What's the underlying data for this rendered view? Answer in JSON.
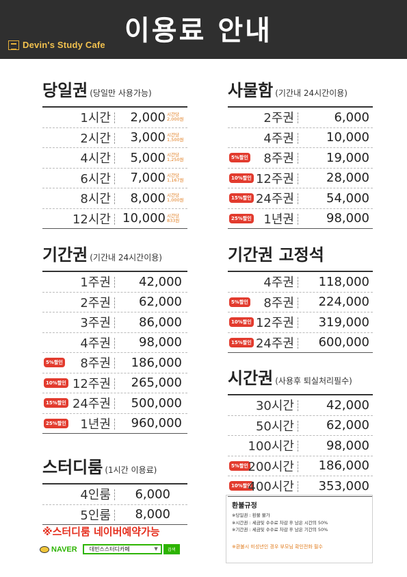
{
  "header": {
    "brand": "Devin's Study Cafe",
    "title": "이용료 안내"
  },
  "daily": {
    "title": "당일권",
    "subtitle": "(당일만 사용가능)",
    "rows": [
      {
        "name": "1시간",
        "price": "2,000",
        "unit_label": "시간당",
        "unit_price": "2,000원"
      },
      {
        "name": "2시간",
        "price": "3,000",
        "unit_label": "시간당",
        "unit_price": "1,500원"
      },
      {
        "name": "4시간",
        "price": "5,000",
        "unit_label": "시간당",
        "unit_price": "1,250원"
      },
      {
        "name": "6시간",
        "price": "7,000",
        "unit_label": "시간당",
        "unit_price": "1,167원"
      },
      {
        "name": "8시간",
        "price": "8,000",
        "unit_label": "시간당",
        "unit_price": "1,000원"
      },
      {
        "name": "12시간",
        "price": "10,000",
        "unit_label": "시간당",
        "unit_price": "833원"
      }
    ]
  },
  "period": {
    "title": "기간권",
    "subtitle": "(기간내 24시간이용)",
    "rows": [
      {
        "badge": "",
        "name": "1주권",
        "price": "42,000"
      },
      {
        "badge": "",
        "name": "2주권",
        "price": "62,000"
      },
      {
        "badge": "",
        "name": "3주권",
        "price": "86,000"
      },
      {
        "badge": "",
        "name": "4주권",
        "price": "98,000"
      },
      {
        "badge": "5%할인",
        "name": "8주권",
        "price": "186,000"
      },
      {
        "badge": "10%할인",
        "name": "12주권",
        "price": "265,000"
      },
      {
        "badge": "15%할인",
        "name": "24주권",
        "price": "500,000"
      },
      {
        "badge": "25%할인",
        "name": "1년권",
        "price": "960,000"
      }
    ]
  },
  "studyroom": {
    "title": "스터디룸",
    "subtitle": "(1시간 이용료)",
    "rows": [
      {
        "name": "4인룸",
        "price": "6,000"
      },
      {
        "name": "5인룸",
        "price": "8,000"
      }
    ]
  },
  "notice": "※스터디룸 네이버예약가능",
  "naver": {
    "logo": "NAVER",
    "search_text": "데빈스스터디카페",
    "search_button": "검색"
  },
  "locker": {
    "title": "사물함",
    "subtitle": "(기간내 24시간이용)",
    "rows": [
      {
        "badge": "",
        "name": "2주권",
        "price": "6,000"
      },
      {
        "badge": "",
        "name": "4주권",
        "price": "10,000"
      },
      {
        "badge": "5%할인",
        "name": "8주권",
        "price": "19,000"
      },
      {
        "badge": "10%할인",
        "name": "12주권",
        "price": "28,000"
      },
      {
        "badge": "15%할인",
        "name": "24주권",
        "price": "54,000"
      },
      {
        "badge": "25%할인",
        "name": "1년권",
        "price": "98,000"
      }
    ]
  },
  "fixed": {
    "title": "기간권 고정석",
    "rows": [
      {
        "badge": "",
        "name": "4주권",
        "price": "118,000"
      },
      {
        "badge": "5%할인",
        "name": "8주권",
        "price": "224,000"
      },
      {
        "badge": "10%할인",
        "name": "12주권",
        "price": "319,000"
      },
      {
        "badge": "15%할인",
        "name": "24주권",
        "price": "600,000"
      }
    ]
  },
  "hourly": {
    "title": "시간권",
    "subtitle": "(사용후 퇴실처리필수)",
    "rows": [
      {
        "badge": "",
        "name": "30시간",
        "price": "42,000"
      },
      {
        "badge": "",
        "name": "50시간",
        "price": "62,000"
      },
      {
        "badge": "",
        "name": "100시간",
        "price": "98,000"
      },
      {
        "badge": "5%할인",
        "name": "200시간",
        "price": "186,000"
      },
      {
        "badge": "10%할인",
        "name": "400시간",
        "price": "353,000"
      }
    ]
  },
  "refund": {
    "title": "환불규정",
    "lines": [
      "※당일권 : 환불 불가",
      "※시간권 : 세금및 수수료 차감 후 남은 시간의 50%",
      "※기간권 : 세금및 수수료 차감 후 남은 기간의 50%"
    ],
    "warning": "※환불시 미성년인 경우 부모님 확인전화 필수"
  },
  "colors": {
    "header_bg": "#2f2f2f",
    "brand_yellow": "#f2c14e",
    "badge_red": "#e23b2e",
    "unit_orange": "#e07a1a",
    "notice_red": "#e5301f",
    "naver_green": "#2db400"
  }
}
